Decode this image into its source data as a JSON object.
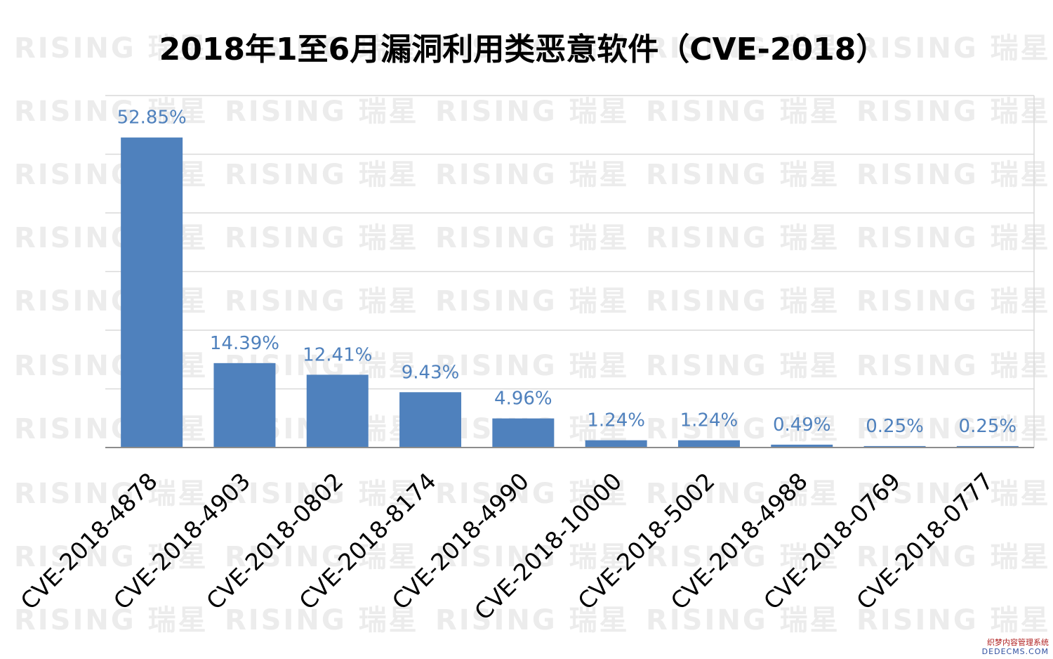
{
  "chart_data": {
    "type": "bar",
    "title": "2018年1至6月漏洞利用类恶意软件（CVE-2018）",
    "categories": [
      "CVE-2018-4878",
      "CVE-2018-4903",
      "CVE-2018-0802",
      "CVE-2018-8174",
      "CVE-2018-4990",
      "CVE-2018-10000",
      "CVE-2018-5002",
      "CVE-2018-4988",
      "CVE-2018-0769",
      "CVE-2018-0777"
    ],
    "values": [
      52.85,
      14.39,
      12.41,
      9.43,
      4.96,
      1.24,
      1.24,
      0.49,
      0.25,
      0.25
    ],
    "data_labels": [
      "52.85%",
      "14.39%",
      "12.41%",
      "9.43%",
      "4.96%",
      "1.24%",
      "1.24%",
      "0.49%",
      "0.25%",
      "0.25%"
    ],
    "ylim": [
      0,
      60
    ],
    "grid": true,
    "bar_color": "#4f81bd",
    "label_color": "#4f81bd",
    "grid_color": "#d9d9d9"
  },
  "watermark": {
    "text": "RISING 瑞星"
  },
  "footer": {
    "line1": "织梦内容管理系统",
    "line2": "DEDECMS.COM"
  }
}
